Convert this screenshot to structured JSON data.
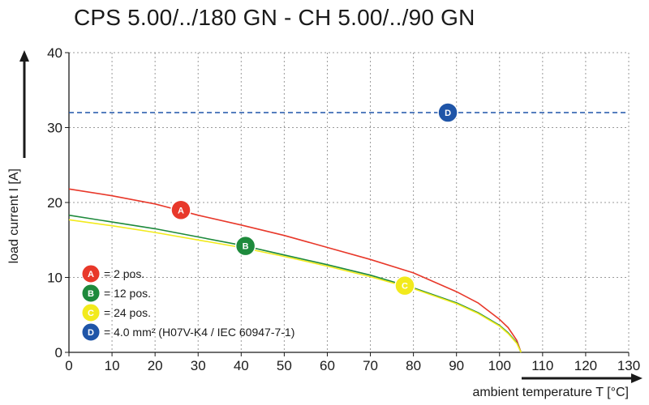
{
  "chart_data": {
    "type": "line",
    "title": "CPS 5.00/../180 GN - CH 5.00/../90 GN",
    "xlabel": "ambient temperature T [°C]",
    "ylabel": "load current I [A]",
    "xlim": [
      0,
      130
    ],
    "ylim": [
      0,
      40
    ],
    "xticks": [
      "0",
      "10",
      "20",
      "30",
      "40",
      "50",
      "60",
      "70",
      "80",
      "90",
      "100",
      "110",
      "120",
      "130"
    ],
    "yticks": [
      "0",
      "10",
      "20",
      "30",
      "40"
    ],
    "grid": true,
    "legend_position": "bottom-left",
    "series": [
      {
        "marker": "A",
        "label": "= 2 pos.",
        "color": "#e8382a",
        "marker_point": [
          26,
          19
        ],
        "x": [
          0,
          10,
          20,
          30,
          40,
          50,
          60,
          70,
          80,
          90,
          95,
          100,
          102,
          104,
          105
        ],
        "y": [
          21.8,
          20.9,
          19.8,
          18.3,
          17.0,
          15.6,
          14.0,
          12.4,
          10.6,
          8.1,
          6.6,
          4.4,
          3.3,
          1.6,
          0
        ]
      },
      {
        "marker": "B",
        "label": "= 12 pos.",
        "color": "#1e8a3c",
        "marker_point": [
          41,
          14.2
        ],
        "x": [
          0,
          10,
          20,
          30,
          40,
          50,
          60,
          70,
          80,
          90,
          95,
          100,
          102,
          104,
          105
        ],
        "y": [
          18.3,
          17.4,
          16.5,
          15.4,
          14.3,
          13.0,
          11.7,
          10.3,
          8.6,
          6.6,
          5.3,
          3.6,
          2.6,
          1.3,
          0
        ]
      },
      {
        "marker": "C",
        "label": "= 24 pos.",
        "color": "#f2ea1c",
        "marker_point": [
          78,
          8.9
        ],
        "x": [
          0,
          10,
          20,
          30,
          40,
          50,
          60,
          70,
          80,
          90,
          95,
          100,
          102,
          104,
          105
        ],
        "y": [
          17.7,
          16.9,
          16.0,
          15.0,
          14.0,
          12.8,
          11.5,
          10.1,
          8.5,
          6.5,
          5.2,
          3.5,
          2.5,
          1.2,
          0
        ]
      },
      {
        "marker": "D",
        "label": "= 4.0 mm² (H07V-K4 / IEC 60947-7-1)",
        "color": "#1f55a8",
        "dashed": true,
        "marker_point": [
          88,
          32
        ],
        "x": [
          0,
          130
        ],
        "y": [
          32,
          32
        ]
      }
    ]
  }
}
